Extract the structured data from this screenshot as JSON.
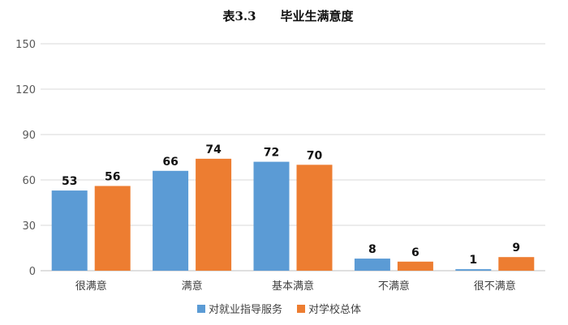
{
  "chart_data": {
    "type": "bar",
    "title": "表3.3　　毕业生满意度",
    "categories": [
      "很满意",
      "满意",
      "基本满意",
      "不满意",
      "很不满意"
    ],
    "series": [
      {
        "name": "对就业指导服务",
        "values": [
          53,
          66,
          72,
          8,
          1
        ],
        "color": "#5B9BD5"
      },
      {
        "name": "对学校总体",
        "values": [
          56,
          74,
          70,
          6,
          9
        ],
        "color": "#ED7D31"
      }
    ],
    "ylim": [
      0,
      150
    ],
    "yticks": [
      0,
      30,
      60,
      90,
      120,
      150
    ],
    "grid": true,
    "legend_position": "bottom",
    "data_labels": true,
    "gridline_color": "#D9D9D9"
  }
}
